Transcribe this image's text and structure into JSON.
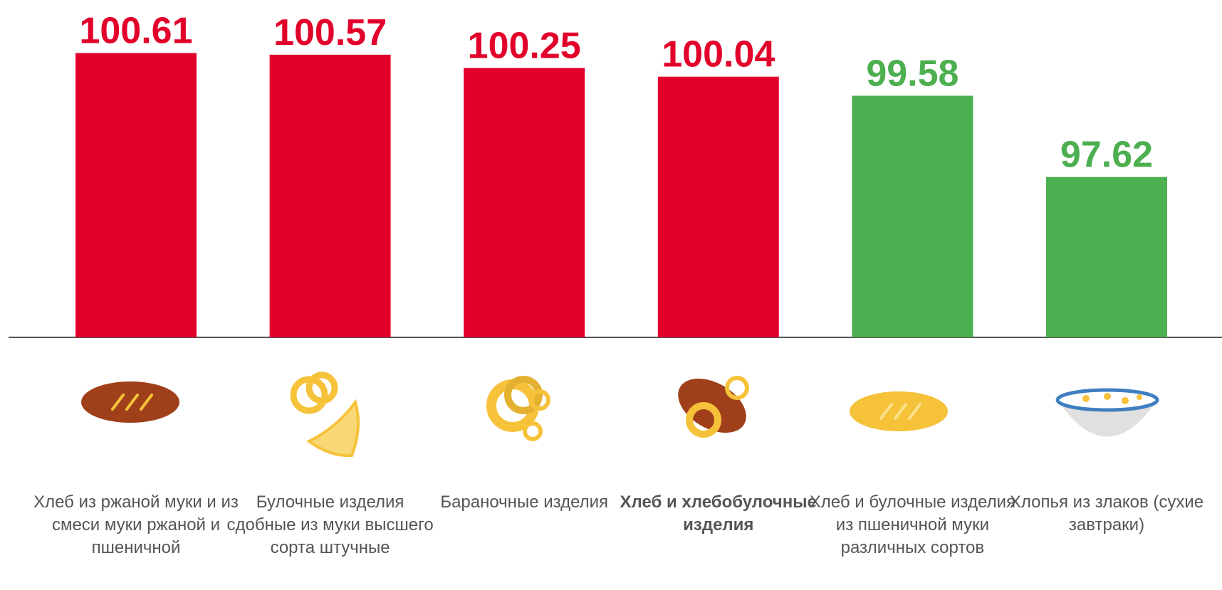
{
  "chart_data": {
    "type": "bar",
    "categories": [
      "Хлеб из ржаной муки и из смеси муки ржаной и пшеничной",
      "Булочные изделия сдобные из муки высшего сорта штучные",
      "Бараночные изделия",
      "Хлеб и хлебобулочные изделия",
      "Хлеб и булочные изделия из пшеничной муки различных сортов",
      "Хлопья из злаков (сухие завтраки)"
    ],
    "values": [
      100.61,
      100.57,
      100.25,
      100.04,
      99.58,
      97.62
    ],
    "colors": [
      "#e2002b",
      "#e2002b",
      "#e2002b",
      "#e2002b",
      "#4caf50",
      "#4caf50"
    ],
    "ylim": [
      93.75,
      101.89
    ],
    "highlight_index": 3
  }
}
